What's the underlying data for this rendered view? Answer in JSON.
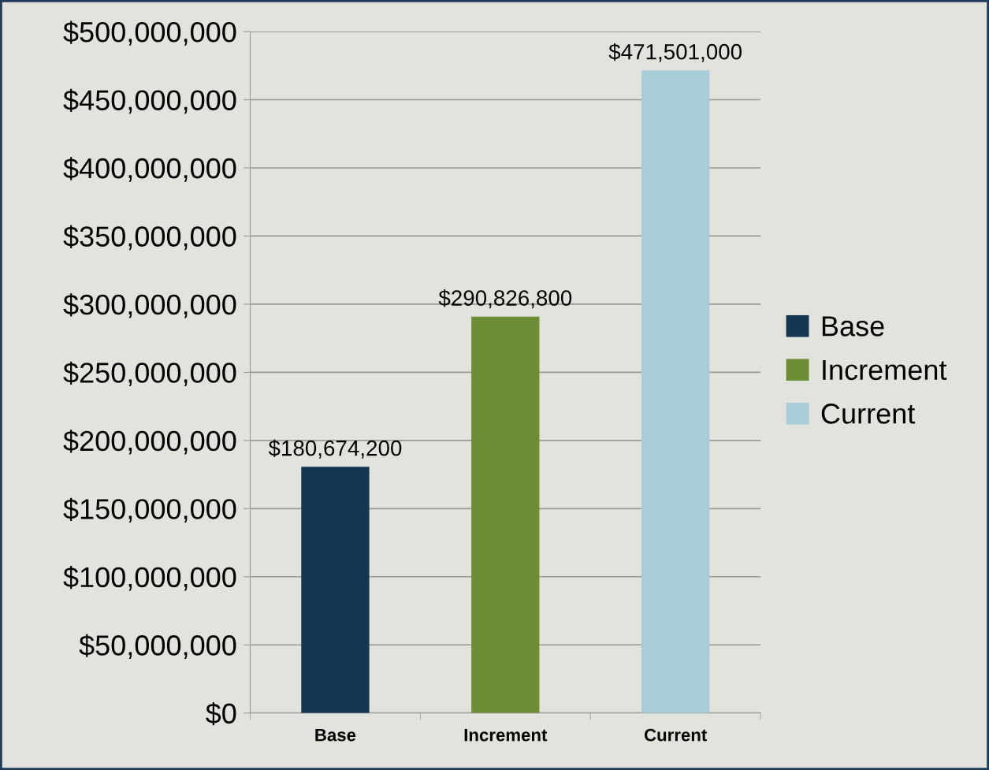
{
  "chart_data": {
    "type": "bar",
    "categories": [
      "Base",
      "Increment",
      "Current"
    ],
    "series": [
      {
        "name": "Base",
        "color": "#153650",
        "values": [
          180674200,
          null,
          null
        ],
        "value_labels": [
          "$180,674,200",
          null,
          null
        ]
      },
      {
        "name": "Increment",
        "color": "#6b8e35",
        "values": [
          null,
          290826800,
          null
        ],
        "value_labels": [
          null,
          "$290,826,800",
          null
        ]
      },
      {
        "name": "Current",
        "color": "#a8cdd6",
        "values": [
          null,
          null,
          471501000
        ],
        "value_labels": [
          null,
          null,
          "$471,501,000"
        ]
      }
    ],
    "ylim": [
      0,
      500000000
    ],
    "yticks": [
      {
        "value": 0,
        "label": "$0"
      },
      {
        "value": 50000000,
        "label": "$50,000,000"
      },
      {
        "value": 100000000,
        "label": "$100,000,000"
      },
      {
        "value": 150000000,
        "label": "$150,000,000"
      },
      {
        "value": 200000000,
        "label": "$200,000,000"
      },
      {
        "value": 250000000,
        "label": "$250,000,000"
      },
      {
        "value": 300000000,
        "label": "$300,000,000"
      },
      {
        "value": 350000000,
        "label": "$350,000,000"
      },
      {
        "value": 400000000,
        "label": "$400,000,000"
      },
      {
        "value": 450000000,
        "label": "$450,000,000"
      },
      {
        "value": 500000000,
        "label": "$500,000,000"
      }
    ],
    "grid": "y",
    "legend": "right"
  }
}
